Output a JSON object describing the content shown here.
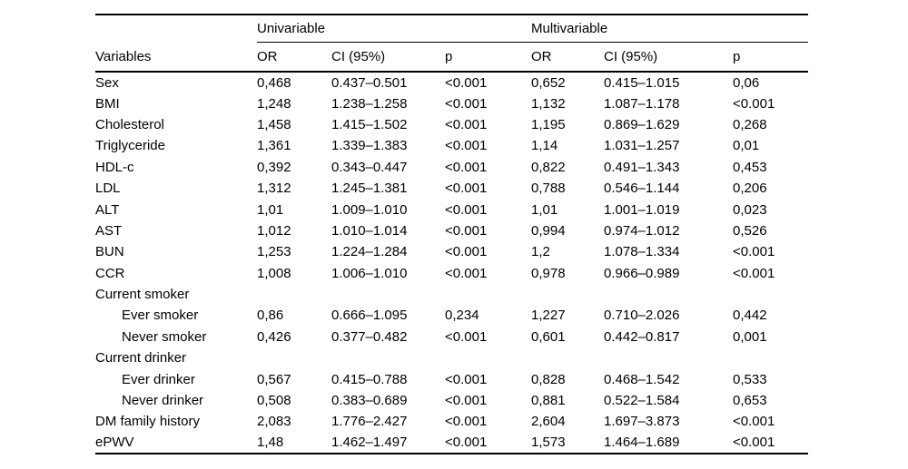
{
  "table": {
    "groups": [
      "Univariable",
      "Multivariable"
    ],
    "columns": [
      "Variables",
      "OR",
      "CI (95%)",
      "p",
      "OR",
      "CI (95%)",
      "p"
    ],
    "rows": [
      {
        "variable": "Sex",
        "indent": false,
        "u_or": "0,468",
        "u_ci": "0.437–0.501",
        "u_p": "<0.001",
        "m_or": "0,652",
        "m_ci": "0.415–1.015",
        "m_p": "0,06"
      },
      {
        "variable": "BMI",
        "indent": false,
        "u_or": "1,248",
        "u_ci": "1.238–1.258",
        "u_p": "<0.001",
        "m_or": "1,132",
        "m_ci": "1.087–1.178",
        "m_p": "<0.001"
      },
      {
        "variable": "Cholesterol",
        "indent": false,
        "u_or": "1,458",
        "u_ci": "1.415–1.502",
        "u_p": "<0.001",
        "m_or": "1,195",
        "m_ci": "0.869–1.629",
        "m_p": "0,268"
      },
      {
        "variable": "Triglyceride",
        "indent": false,
        "u_or": "1,361",
        "u_ci": "1.339–1.383",
        "u_p": "<0.001",
        "m_or": "1,14",
        "m_ci": "1.031–1.257",
        "m_p": "0,01"
      },
      {
        "variable": "HDL-c",
        "indent": false,
        "u_or": "0,392",
        "u_ci": "0.343–0.447",
        "u_p": "<0.001",
        "m_or": "0,822",
        "m_ci": "0.491–1.343",
        "m_p": "0,453"
      },
      {
        "variable": "LDL",
        "indent": false,
        "u_or": "1,312",
        "u_ci": "1.245–1.381",
        "u_p": "<0.001",
        "m_or": "0,788",
        "m_ci": "0.546–1.144",
        "m_p": "0,206"
      },
      {
        "variable": "ALT",
        "indent": false,
        "u_or": "1,01",
        "u_ci": "1.009–1.010",
        "u_p": "<0.001",
        "m_or": "1,01",
        "m_ci": "1.001–1.019",
        "m_p": "0,023"
      },
      {
        "variable": "AST",
        "indent": false,
        "u_or": "1,012",
        "u_ci": "1.010–1.014",
        "u_p": "<0.001",
        "m_or": "0,994",
        "m_ci": "0.974–1.012",
        "m_p": "0,526"
      },
      {
        "variable": "BUN",
        "indent": false,
        "u_or": "1,253",
        "u_ci": "1.224–1.284",
        "u_p": "<0.001",
        "m_or": "1,2",
        "m_ci": "1.078–1.334",
        "m_p": "<0.001"
      },
      {
        "variable": "CCR",
        "indent": false,
        "u_or": "1,008",
        "u_ci": "1.006–1.010",
        "u_p": "<0.001",
        "m_or": "0,978",
        "m_ci": "0.966–0.989",
        "m_p": "<0.001"
      },
      {
        "variable": "Current smoker",
        "indent": false,
        "u_or": "",
        "u_ci": "",
        "u_p": "",
        "m_or": "",
        "m_ci": "",
        "m_p": ""
      },
      {
        "variable": "Ever smoker",
        "indent": true,
        "u_or": "0,86",
        "u_ci": "0.666–1.095",
        "u_p": "0,234",
        "m_or": "1,227",
        "m_ci": "0.710–2.026",
        "m_p": "0,442"
      },
      {
        "variable": "Never smoker",
        "indent": true,
        "u_or": "0,426",
        "u_ci": "0.377–0.482",
        "u_p": "<0.001",
        "m_or": "0,601",
        "m_ci": "0.442–0.817",
        "m_p": "0,001"
      },
      {
        "variable": "Current drinker",
        "indent": false,
        "u_or": "",
        "u_ci": "",
        "u_p": "",
        "m_or": "",
        "m_ci": "",
        "m_p": ""
      },
      {
        "variable": "Ever drinker",
        "indent": true,
        "u_or": "0,567",
        "u_ci": "0.415–0.788",
        "u_p": "<0.001",
        "m_or": "0,828",
        "m_ci": "0.468–1.542",
        "m_p": "0,533"
      },
      {
        "variable": "Never drinker",
        "indent": true,
        "u_or": "0,508",
        "u_ci": "0.383–0.689",
        "u_p": "<0.001",
        "m_or": "0,881",
        "m_ci": "0.522–1.584",
        "m_p": "0,653"
      },
      {
        "variable": "DM family history",
        "indent": false,
        "u_or": "2,083",
        "u_ci": "1.776–2.427",
        "u_p": "<0.001",
        "m_or": "2,604",
        "m_ci": "1.697–3.873",
        "m_p": "<0.001"
      },
      {
        "variable": "ePWV",
        "indent": false,
        "u_or": "1,48",
        "u_ci": "1.462–1.497",
        "u_p": "<0.001",
        "m_or": "1,573",
        "m_ci": "1.464–1.689",
        "m_p": "<0.001"
      }
    ]
  }
}
